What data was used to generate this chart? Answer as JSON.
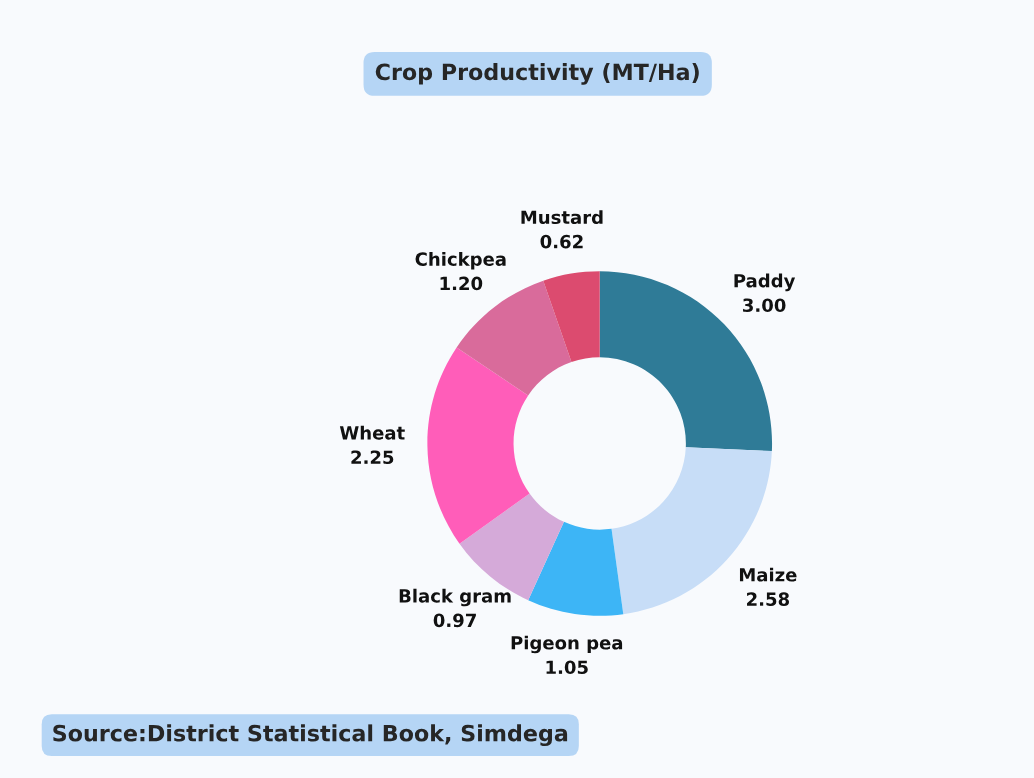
{
  "chart_data": {
    "type": "donut",
    "title": "Crop Productivity (MT/Ha)",
    "categories": [
      "Paddy",
      "Maize",
      "Pigeon pea",
      "Black gram",
      "Wheat",
      "Chickpea",
      "Mustard"
    ],
    "values": [
      3.0,
      2.58,
      1.05,
      0.97,
      2.25,
      1.2,
      0.62
    ],
    "value_labels": [
      "3.00",
      "2.58",
      "1.05",
      "0.97",
      "2.25",
      "1.20",
      "0.62"
    ],
    "colors": [
      "#2f7b97",
      "#c7ddf7",
      "#3db5f6",
      "#d5aad9",
      "#ff5db9",
      "#d96b9b",
      "#dc4b6f"
    ],
    "annotations": [
      "Source:District Statistical Book, Simdega"
    ]
  }
}
